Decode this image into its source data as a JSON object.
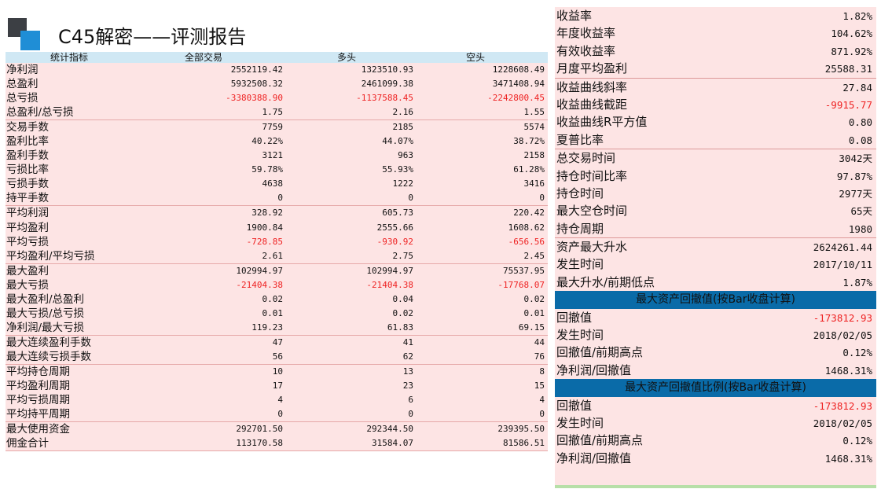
{
  "title": "C45解密——评测报告",
  "left_table": {
    "headers": [
      "统计指标",
      "全部交易",
      "多头",
      "空头"
    ],
    "groups": [
      {
        "rows": [
          {
            "label": "净利润",
            "values": [
              "2552119.42",
              "1323510.93",
              "1228608.49"
            ],
            "neg": [
              false,
              false,
              false
            ]
          },
          {
            "label": "总盈利",
            "values": [
              "5932508.32",
              "2461099.38",
              "3471408.94"
            ],
            "neg": [
              false,
              false,
              false
            ]
          },
          {
            "label": "总亏损",
            "values": [
              "-3380388.90",
              "-1137588.45",
              "-2242800.45"
            ],
            "neg": [
              true,
              true,
              true
            ]
          },
          {
            "label": "总盈利/总亏损",
            "values": [
              "1.75",
              "2.16",
              "1.55"
            ],
            "neg": [
              false,
              false,
              false
            ]
          }
        ]
      },
      {
        "rows": [
          {
            "label": "交易手数",
            "values": [
              "7759",
              "2185",
              "5574"
            ],
            "neg": [
              false,
              false,
              false
            ]
          },
          {
            "label": "盈利比率",
            "values": [
              "40.22%",
              "44.07%",
              "38.72%"
            ],
            "neg": [
              false,
              false,
              false
            ]
          },
          {
            "label": "盈利手数",
            "values": [
              "3121",
              "963",
              "2158"
            ],
            "neg": [
              false,
              false,
              false
            ]
          },
          {
            "label": "亏损比率",
            "values": [
              "59.78%",
              "55.93%",
              "61.28%"
            ],
            "neg": [
              false,
              false,
              false
            ]
          },
          {
            "label": "亏损手数",
            "values": [
              "4638",
              "1222",
              "3416"
            ],
            "neg": [
              false,
              false,
              false
            ]
          },
          {
            "label": "持平手数",
            "values": [
              "0",
              "0",
              "0"
            ],
            "neg": [
              false,
              false,
              false
            ]
          }
        ]
      },
      {
        "rows": [
          {
            "label": "平均利润",
            "values": [
              "328.92",
              "605.73",
              "220.42"
            ],
            "neg": [
              false,
              false,
              false
            ]
          },
          {
            "label": "平均盈利",
            "values": [
              "1900.84",
              "2555.66",
              "1608.62"
            ],
            "neg": [
              false,
              false,
              false
            ]
          },
          {
            "label": "平均亏损",
            "values": [
              "-728.85",
              "-930.92",
              "-656.56"
            ],
            "neg": [
              true,
              true,
              true
            ]
          },
          {
            "label": "平均盈利/平均亏损",
            "values": [
              "2.61",
              "2.75",
              "2.45"
            ],
            "neg": [
              false,
              false,
              false
            ]
          }
        ]
      },
      {
        "rows": [
          {
            "label": "最大盈利",
            "values": [
              "102994.97",
              "102994.97",
              "75537.95"
            ],
            "neg": [
              false,
              false,
              false
            ]
          },
          {
            "label": "最大亏损",
            "values": [
              "-21404.38",
              "-21404.38",
              "-17768.07"
            ],
            "neg": [
              true,
              true,
              true
            ]
          },
          {
            "label": "最大盈利/总盈利",
            "values": [
              "0.02",
              "0.04",
              "0.02"
            ],
            "neg": [
              false,
              false,
              false
            ]
          },
          {
            "label": "最大亏损/总亏损",
            "values": [
              "0.01",
              "0.02",
              "0.01"
            ],
            "neg": [
              false,
              false,
              false
            ]
          },
          {
            "label": "净利润/最大亏损",
            "values": [
              "119.23",
              "61.83",
              "69.15"
            ],
            "neg": [
              false,
              false,
              false
            ]
          }
        ]
      },
      {
        "rows": [
          {
            "label": "最大连续盈利手数",
            "values": [
              "47",
              "41",
              "44"
            ],
            "neg": [
              false,
              false,
              false
            ]
          },
          {
            "label": "最大连续亏损手数",
            "values": [
              "56",
              "62",
              "76"
            ],
            "neg": [
              false,
              false,
              false
            ]
          }
        ]
      },
      {
        "rows": [
          {
            "label": "平均持仓周期",
            "values": [
              "10",
              "13",
              "8"
            ],
            "neg": [
              false,
              false,
              false
            ]
          },
          {
            "label": "平均盈利周期",
            "values": [
              "17",
              "23",
              "15"
            ],
            "neg": [
              false,
              false,
              false
            ]
          },
          {
            "label": "平均亏损周期",
            "values": [
              "4",
              "6",
              "4"
            ],
            "neg": [
              false,
              false,
              false
            ]
          },
          {
            "label": "平均持平周期",
            "values": [
              "0",
              "0",
              "0"
            ],
            "neg": [
              false,
              false,
              false
            ]
          }
        ]
      },
      {
        "rows": [
          {
            "label": "最大使用资金",
            "values": [
              "292701.50",
              "292344.50",
              "239395.50"
            ],
            "neg": [
              false,
              false,
              false
            ]
          },
          {
            "label": "佣金合计",
            "values": [
              "113170.58",
              "31584.07",
              "81586.51"
            ],
            "neg": [
              false,
              false,
              false
            ]
          }
        ]
      }
    ]
  },
  "right_table": {
    "rows": [
      {
        "type": "row",
        "label": "收益率",
        "value": "1.82%",
        "neg": false,
        "sep": false
      },
      {
        "type": "row",
        "label": "年度收益率",
        "value": "104.62%",
        "neg": false,
        "sep": false
      },
      {
        "type": "row",
        "label": "有效收益率",
        "value": "871.92%",
        "neg": false,
        "sep": false
      },
      {
        "type": "row",
        "label": "月度平均盈利",
        "value": "25588.31",
        "neg": false,
        "sep": true
      },
      {
        "type": "row",
        "label": "收益曲线斜率",
        "value": "27.84",
        "neg": false,
        "sep": false
      },
      {
        "type": "row",
        "label": "收益曲线截距",
        "value": "-9915.77",
        "neg": true,
        "sep": false
      },
      {
        "type": "row",
        "label": "收益曲线R平方值",
        "value": "0.80",
        "neg": false,
        "sep": false
      },
      {
        "type": "row",
        "label": "夏普比率",
        "value": "0.08",
        "neg": false,
        "sep": true
      },
      {
        "type": "row",
        "label": "总交易时间",
        "value": "3042天",
        "neg": false,
        "sep": false
      },
      {
        "type": "row",
        "label": "持仓时间比率",
        "value": "97.87%",
        "neg": false,
        "sep": false
      },
      {
        "type": "row",
        "label": "持仓时间",
        "value": "2977天",
        "neg": false,
        "sep": false
      },
      {
        "type": "row",
        "label": "最大空仓时间",
        "value": "65天",
        "neg": false,
        "sep": false
      },
      {
        "type": "row",
        "label": "持仓周期",
        "value": "1980",
        "neg": false,
        "sep": true
      },
      {
        "type": "row",
        "label": "资产最大升水",
        "value": "2624261.44",
        "neg": false,
        "sep": false
      },
      {
        "type": "row",
        "label": "发生时间",
        "value": "2017/10/11",
        "neg": false,
        "sep": false
      },
      {
        "type": "row",
        "label": "最大升水/前期低点",
        "value": "1.87%",
        "neg": false,
        "sep": false
      },
      {
        "type": "header",
        "label": "最大资产回撤值(按Bar收盘计算)"
      },
      {
        "type": "row",
        "label": "回撤值",
        "value": "-173812.93",
        "neg": true,
        "sep": false
      },
      {
        "type": "row",
        "label": "发生时间",
        "value": "2018/02/05",
        "neg": false,
        "sep": false
      },
      {
        "type": "row",
        "label": "回撤值/前期高点",
        "value": "0.12%",
        "neg": false,
        "sep": false
      },
      {
        "type": "row",
        "label": "净利润/回撤值",
        "value": "1468.31%",
        "neg": false,
        "sep": false
      },
      {
        "type": "header",
        "label": "最大资产回撤值比例(按Bar收盘计算)"
      },
      {
        "type": "row",
        "label": "回撤值",
        "value": "-173812.93",
        "neg": true,
        "sep": false
      },
      {
        "type": "row",
        "label": "发生时间",
        "value": "2018/02/05",
        "neg": false,
        "sep": false
      },
      {
        "type": "row",
        "label": "回撤值/前期高点",
        "value": "0.12%",
        "neg": false,
        "sep": false
      },
      {
        "type": "row",
        "label": "净利润/回撤值",
        "value": "1468.31%",
        "neg": false,
        "sep": false
      }
    ]
  },
  "colors": {
    "row_bg": "#fde4e4",
    "header_bg": "#d0e8f4",
    "section_bg": "#0a6ba8",
    "negative": "#ee2222",
    "logo_dark": "#3c3f44",
    "logo_blue": "#1f8ed6"
  }
}
